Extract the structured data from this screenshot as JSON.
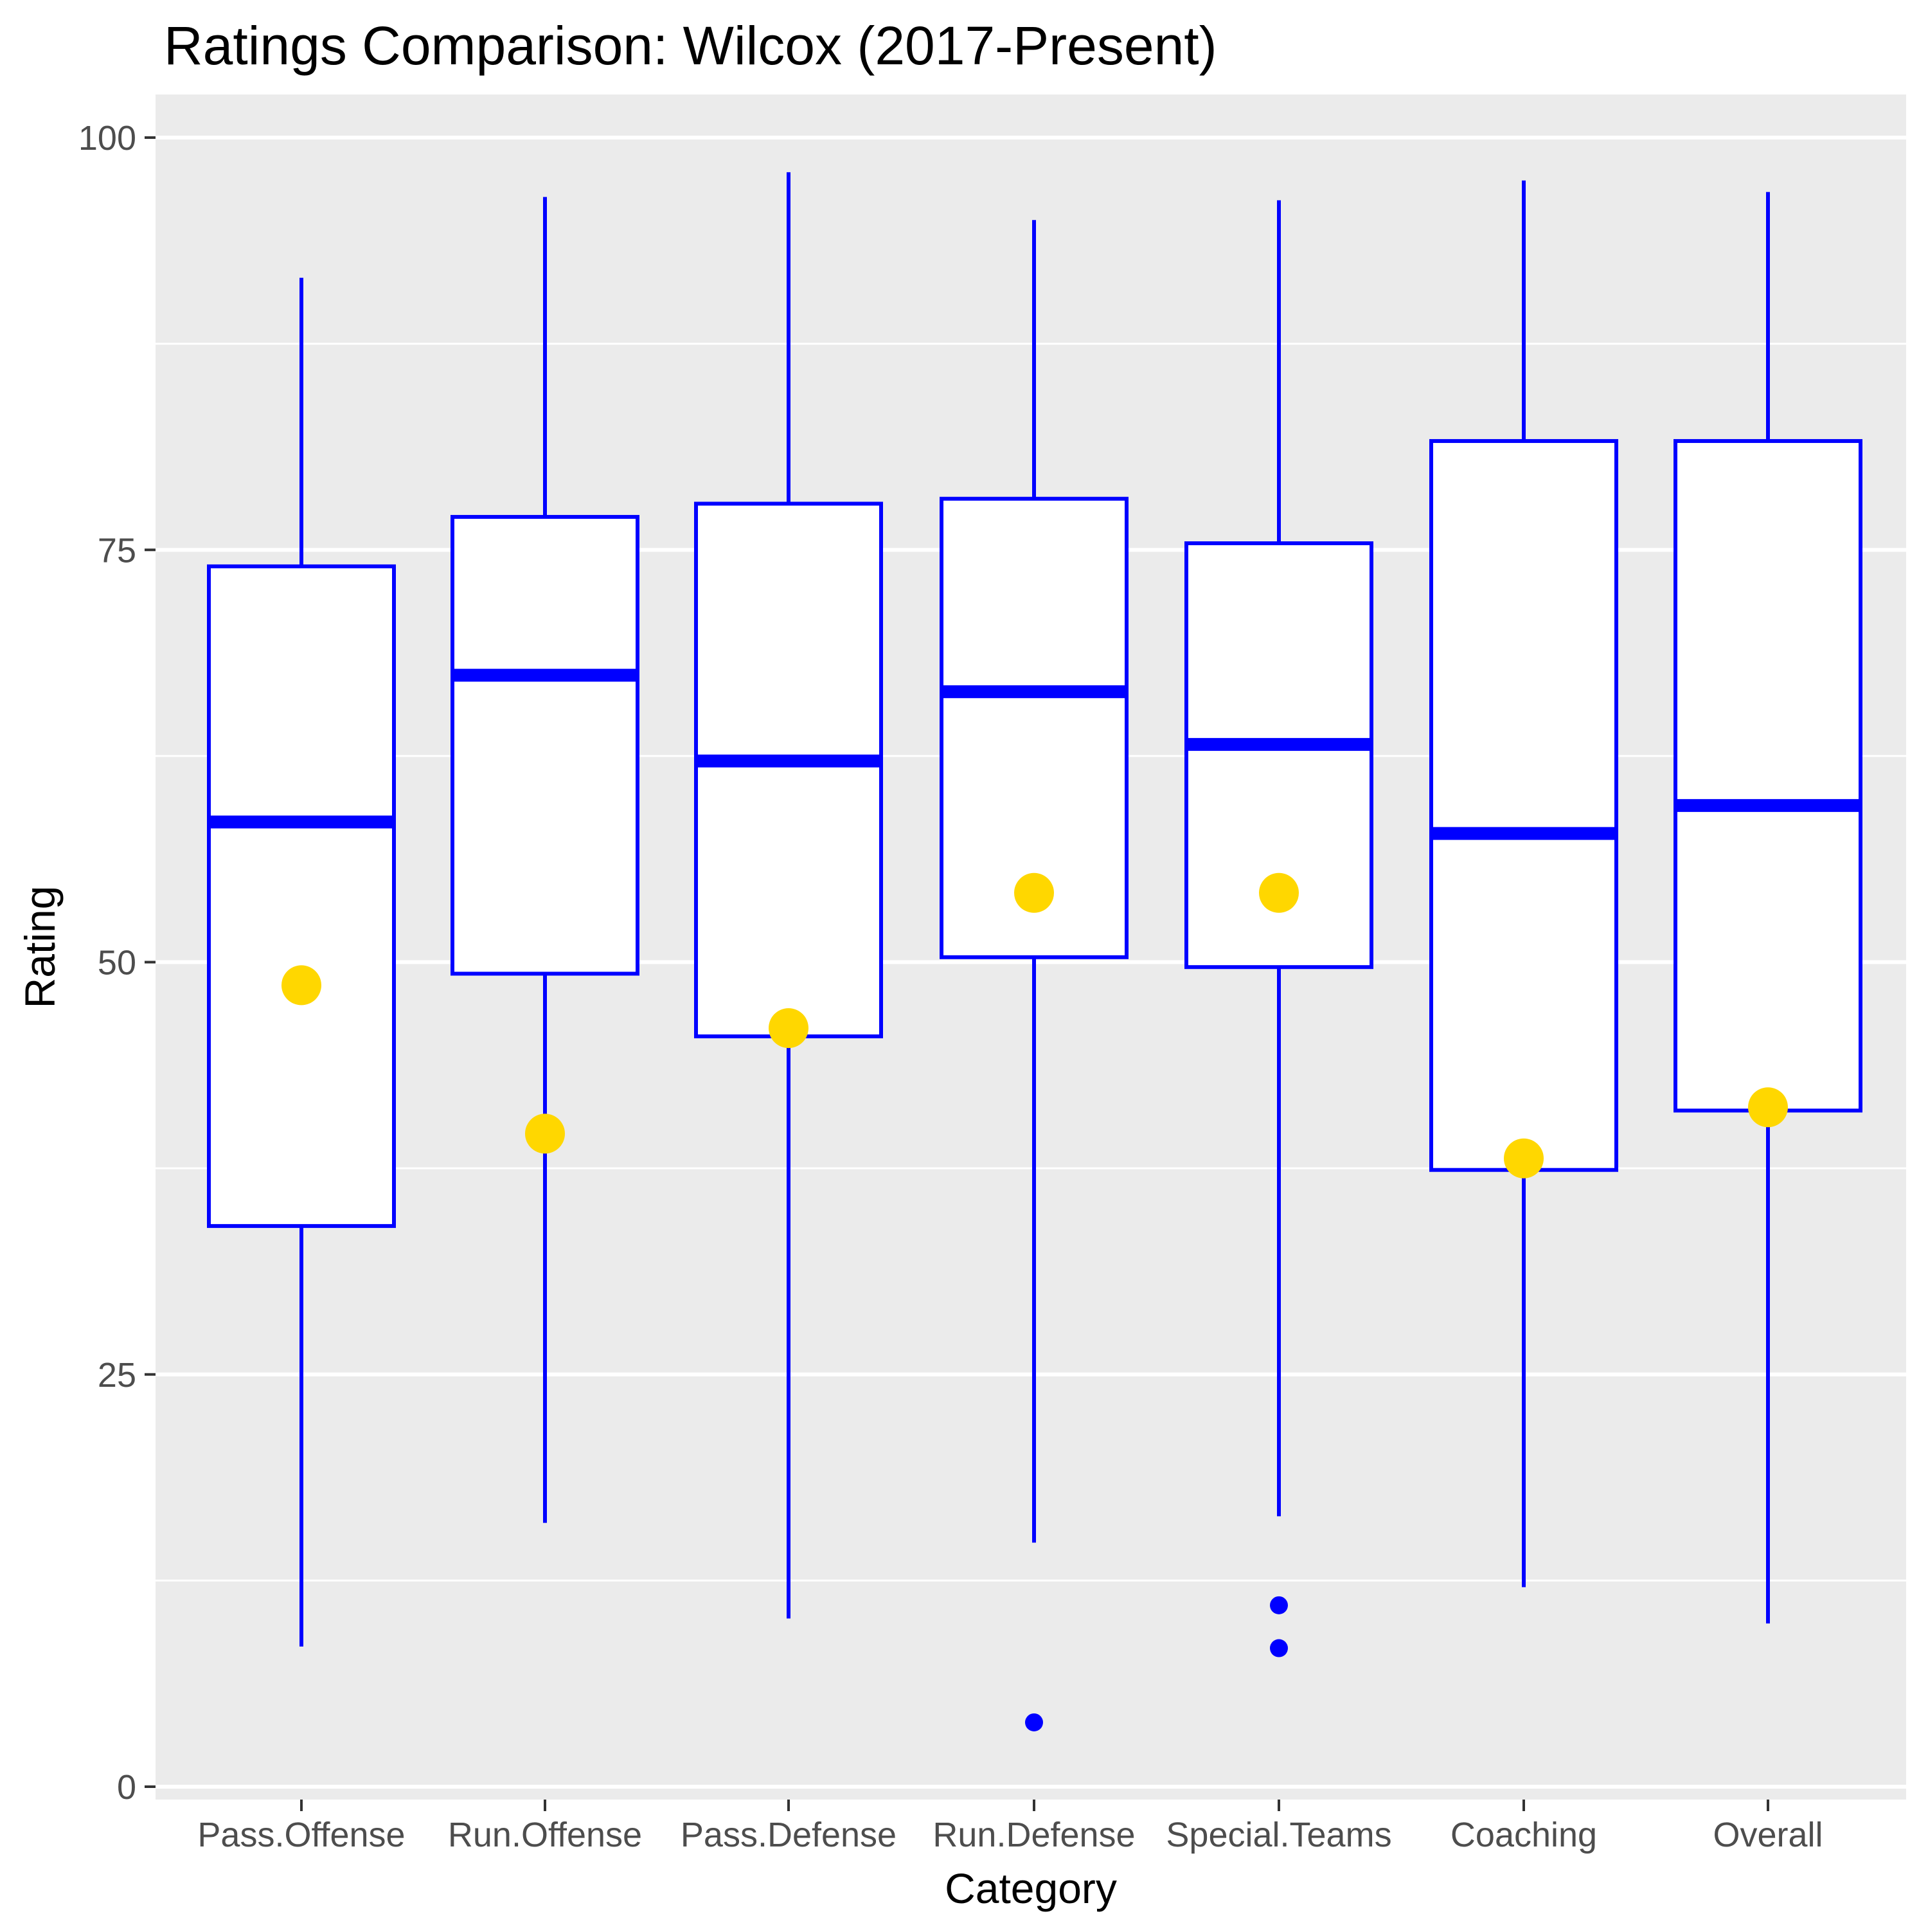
{
  "page": {
    "background": "#FFFFFF"
  },
  "chart_data": {
    "type": "boxplot",
    "title": "Ratings Comparison: Wilcox (2017-Present)",
    "xlabel": "Category",
    "ylabel": "Rating",
    "ylim": [
      0,
      100
    ],
    "yticks": [
      0,
      25,
      50,
      75,
      100
    ],
    "yminor_gridlines": [
      12.5,
      37.5,
      62.5,
      87.5
    ],
    "grid": "on",
    "legend": "none",
    "categories": [
      "Pass.Offense",
      "Run.Offense",
      "Pass.Defense",
      "Run.Defense",
      "Special.Teams",
      "Coaching",
      "Overall"
    ],
    "series": [
      {
        "name": "Pass.Offense",
        "whisker_low": 8.5,
        "q1": 34.0,
        "median": 58.5,
        "q3": 74.0,
        "whisker_high": 91.5,
        "mean": 48.6,
        "outliers": []
      },
      {
        "name": "Run.Offense",
        "whisker_low": 16.0,
        "q1": 49.3,
        "median": 67.4,
        "q3": 77.0,
        "whisker_high": 96.4,
        "mean": 39.6,
        "outliers": []
      },
      {
        "name": "Pass.Defense",
        "whisker_low": 10.2,
        "q1": 45.5,
        "median": 62.2,
        "q3": 77.8,
        "whisker_high": 97.9,
        "mean": 46.0,
        "outliers": []
      },
      {
        "name": "Run.Defense",
        "whisker_low": 14.8,
        "q1": 50.3,
        "median": 66.4,
        "q3": 78.1,
        "whisker_high": 95.0,
        "mean": 54.2,
        "outliers": [
          3.9
        ]
      },
      {
        "name": "Special.Teams",
        "whisker_low": 16.4,
        "q1": 49.7,
        "median": 63.2,
        "q3": 75.4,
        "whisker_high": 96.2,
        "mean": 54.2,
        "outliers": [
          11.0,
          8.4
        ]
      },
      {
        "name": "Coaching",
        "whisker_low": 12.1,
        "q1": 37.4,
        "median": 57.8,
        "q3": 81.6,
        "whisker_high": 97.4,
        "mean": 38.1,
        "outliers": []
      },
      {
        "name": "Overall",
        "whisker_low": 9.9,
        "q1": 41.0,
        "median": 59.5,
        "q3": 81.6,
        "whisker_high": 96.7,
        "mean": 41.2,
        "outliers": []
      }
    ],
    "colors": {
      "box_stroke": "#0000FF",
      "box_fill": "#FFFFFF",
      "median_line": "#0000FF",
      "whisker": "#0000FF",
      "mean_dot": "#FFD700",
      "outlier_dot": "#0000FF",
      "panel_background": "#EBEBEB",
      "gridline": "#FFFFFF",
      "tick_label": "#4D4D4D",
      "axis_text": "#000000",
      "tick_mark": "#333333"
    }
  }
}
